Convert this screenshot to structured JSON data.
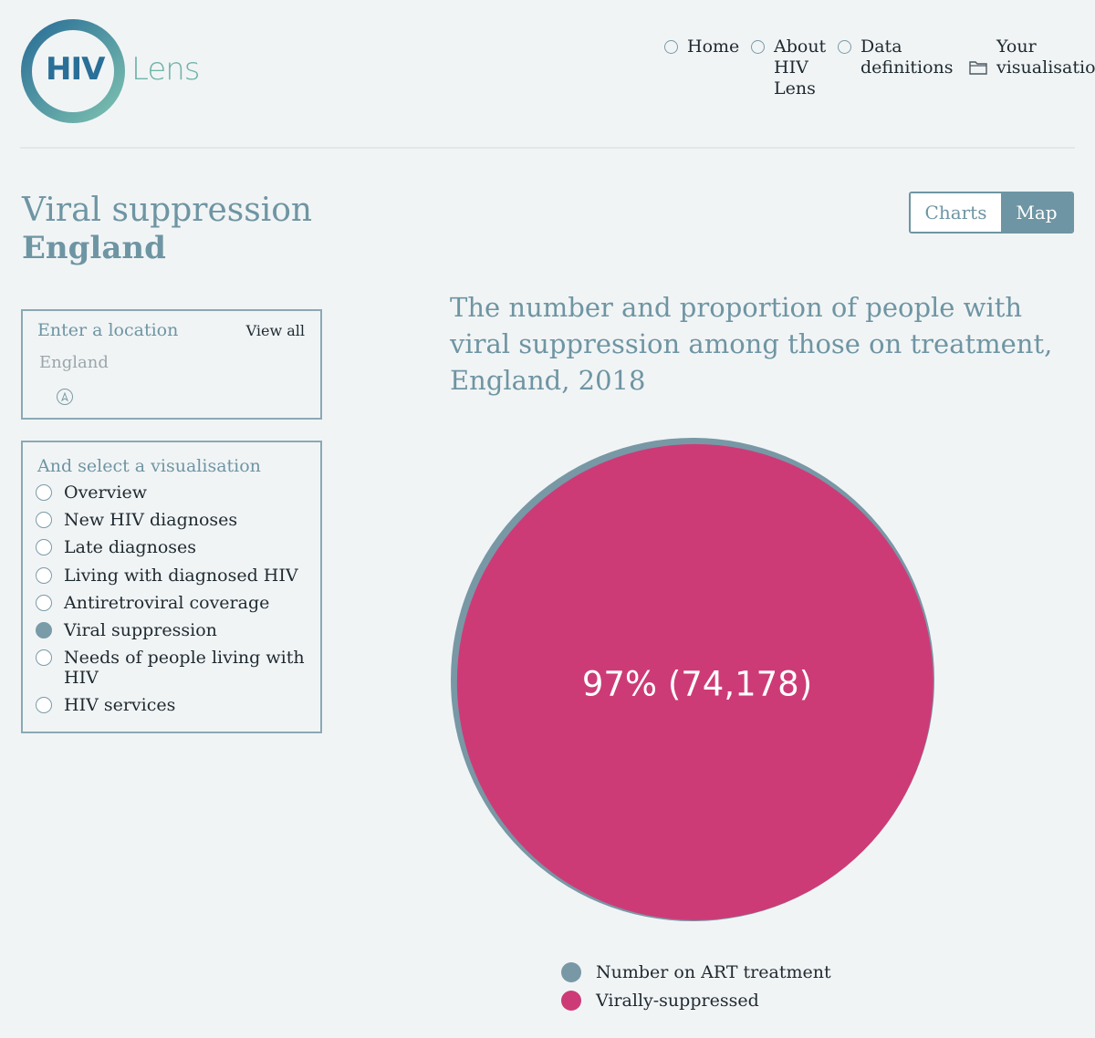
{
  "logo": {
    "hiv": "HIV",
    "lens": "Lens"
  },
  "nav": {
    "home": "Home",
    "about_1": "About",
    "about_2": "HIV",
    "about_3": "Lens",
    "data_1": "Data",
    "data_2": "definitions",
    "your_1": "Your",
    "your_2": "visualisations"
  },
  "page": {
    "title": "Viral suppression",
    "location": "England"
  },
  "toggle": {
    "charts": "Charts",
    "map": "Map",
    "active": "Map"
  },
  "location_panel": {
    "label": "Enter a location",
    "view_all": "View all",
    "value": "England",
    "pin_icon": "location-pin-icon"
  },
  "visualisation_panel": {
    "label": "And select a visualisation",
    "items": [
      {
        "label": "Overview",
        "selected": false
      },
      {
        "label": "New HIV diagnoses",
        "selected": false
      },
      {
        "label": "Late diagnoses",
        "selected": false
      },
      {
        "label": "Living with diagnosed HIV",
        "selected": false
      },
      {
        "label": "Antiretroviral coverage",
        "selected": false
      },
      {
        "label": "Viral suppression",
        "selected": true
      },
      {
        "label": "Needs of people living with HIV",
        "selected": false
      },
      {
        "label": "HIV services",
        "selected": false
      }
    ]
  },
  "chart_data": {
    "type": "nested-circle",
    "title": "The number and proportion of people with viral suppression among those on treatment, England, 2018",
    "center_label": "97% (74,178)",
    "proportion_suppressed": 0.97,
    "virally_suppressed_count": 74178,
    "series": [
      {
        "name": "Number on ART treatment",
        "color": "#7898a6"
      },
      {
        "name": "Virally-suppressed",
        "color": "#cd3b76"
      }
    ]
  },
  "colors": {
    "accent": "#6e95a3",
    "art_treatment": "#7898a6",
    "suppressed": "#cd3b76",
    "background": "#f1f4f5"
  }
}
